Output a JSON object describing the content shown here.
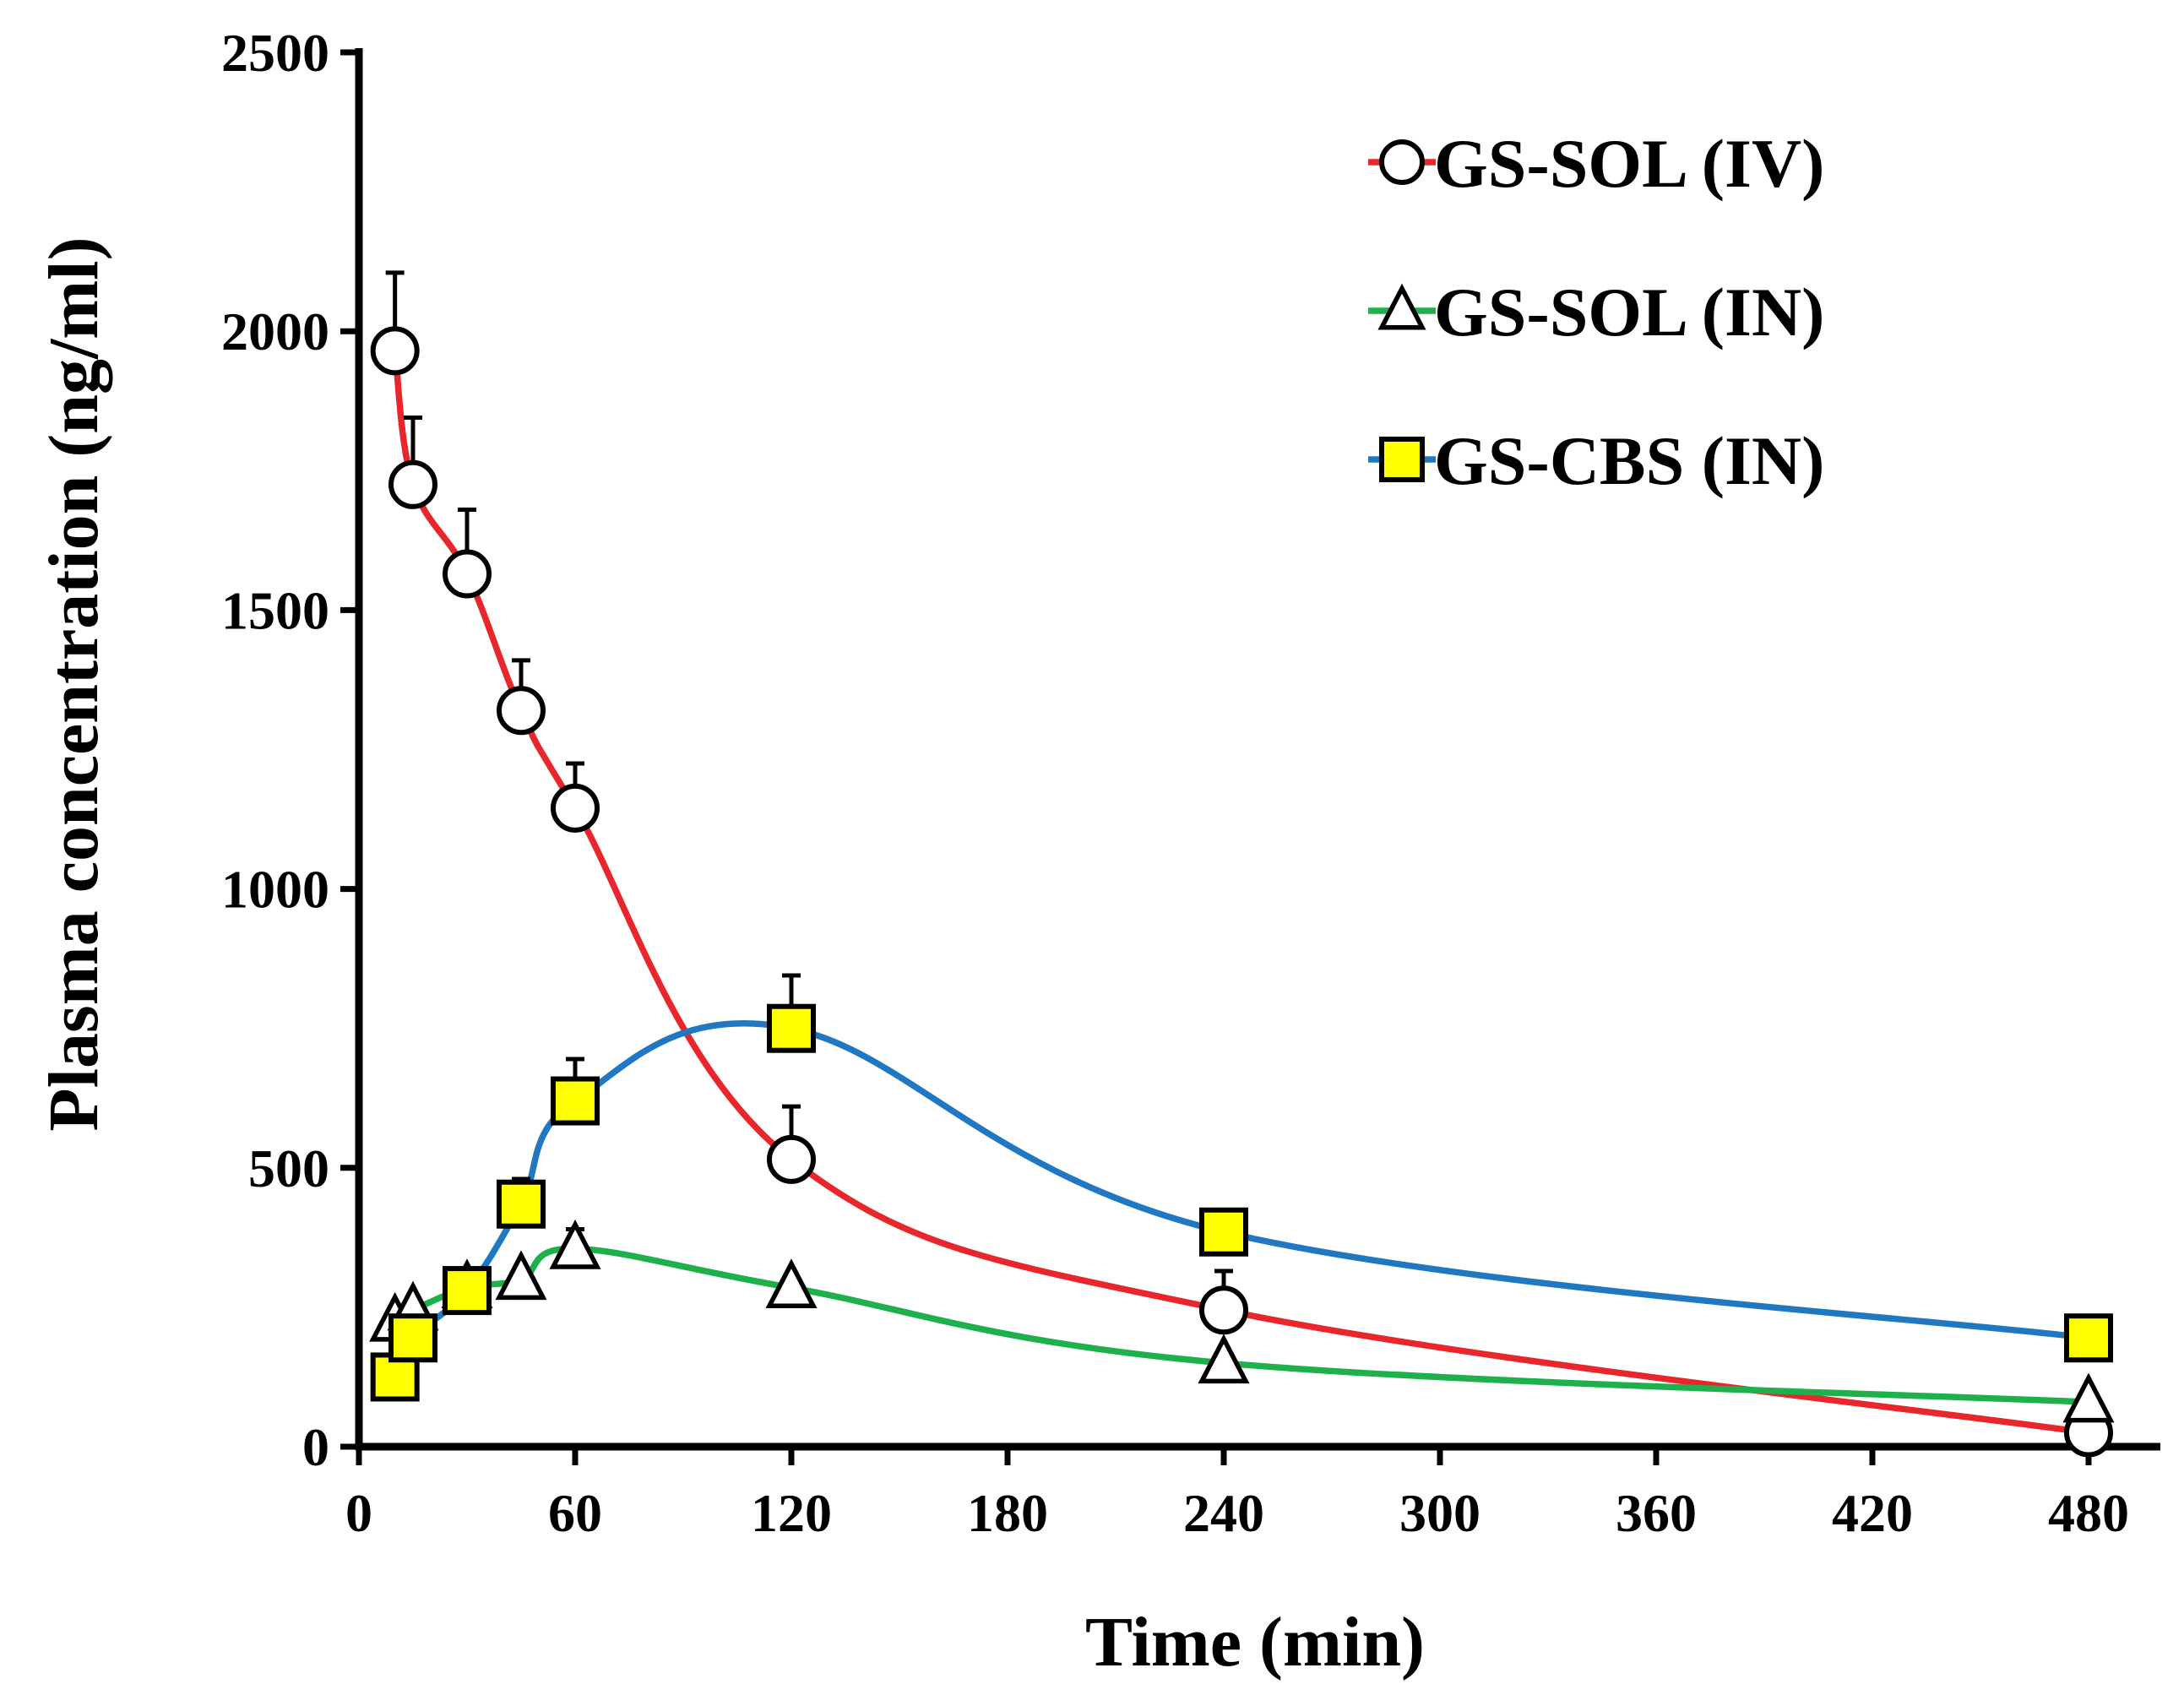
{
  "chart_data": {
    "type": "line",
    "xlabel": "Time (min)",
    "ylabel": "Plasma concentration (ng/ml)",
    "xlim": [
      0,
      495
    ],
    "ylim": [
      0,
      2500
    ],
    "xticks": [
      0,
      60,
      120,
      180,
      240,
      300,
      360,
      420,
      480
    ],
    "yticks": [
      0,
      500,
      1000,
      1500,
      2000,
      2500
    ],
    "grid": false,
    "legend_position": "top-right",
    "series": [
      {
        "name": "GS-SOL (IV)",
        "marker": "circle",
        "marker_fill": "#ffffff",
        "line_color": "#e8262b",
        "x": [
          10,
          15,
          30,
          45,
          60,
          120,
          240,
          480
        ],
        "y": [
          1965,
          1725,
          1565,
          1320,
          1145,
          515,
          245,
          25
        ],
        "error": [
          140,
          120,
          115,
          90,
          80,
          95,
          70,
          0
        ]
      },
      {
        "name": "GS-SOL (IN)",
        "marker": "triangle",
        "marker_fill": "#ffffff",
        "line_color": "#1db04b",
        "x": [
          10,
          15,
          30,
          45,
          60,
          120,
          240,
          480
        ],
        "y": [
          225,
          245,
          285,
          300,
          355,
          285,
          150,
          80
        ],
        "error": [
          0,
          0,
          0,
          0,
          35,
          0,
          0,
          0
        ]
      },
      {
        "name": "GS-CBS (IN)",
        "marker": "square",
        "marker_fill": "#ffff00",
        "line_color": "#1f78c1",
        "x": [
          10,
          15,
          30,
          45,
          60,
          120,
          240,
          480
        ],
        "y": [
          125,
          195,
          280,
          435,
          620,
          750,
          385,
          195
        ],
        "error": [
          0,
          0,
          0,
          45,
          75,
          95,
          0,
          0
        ]
      }
    ]
  }
}
